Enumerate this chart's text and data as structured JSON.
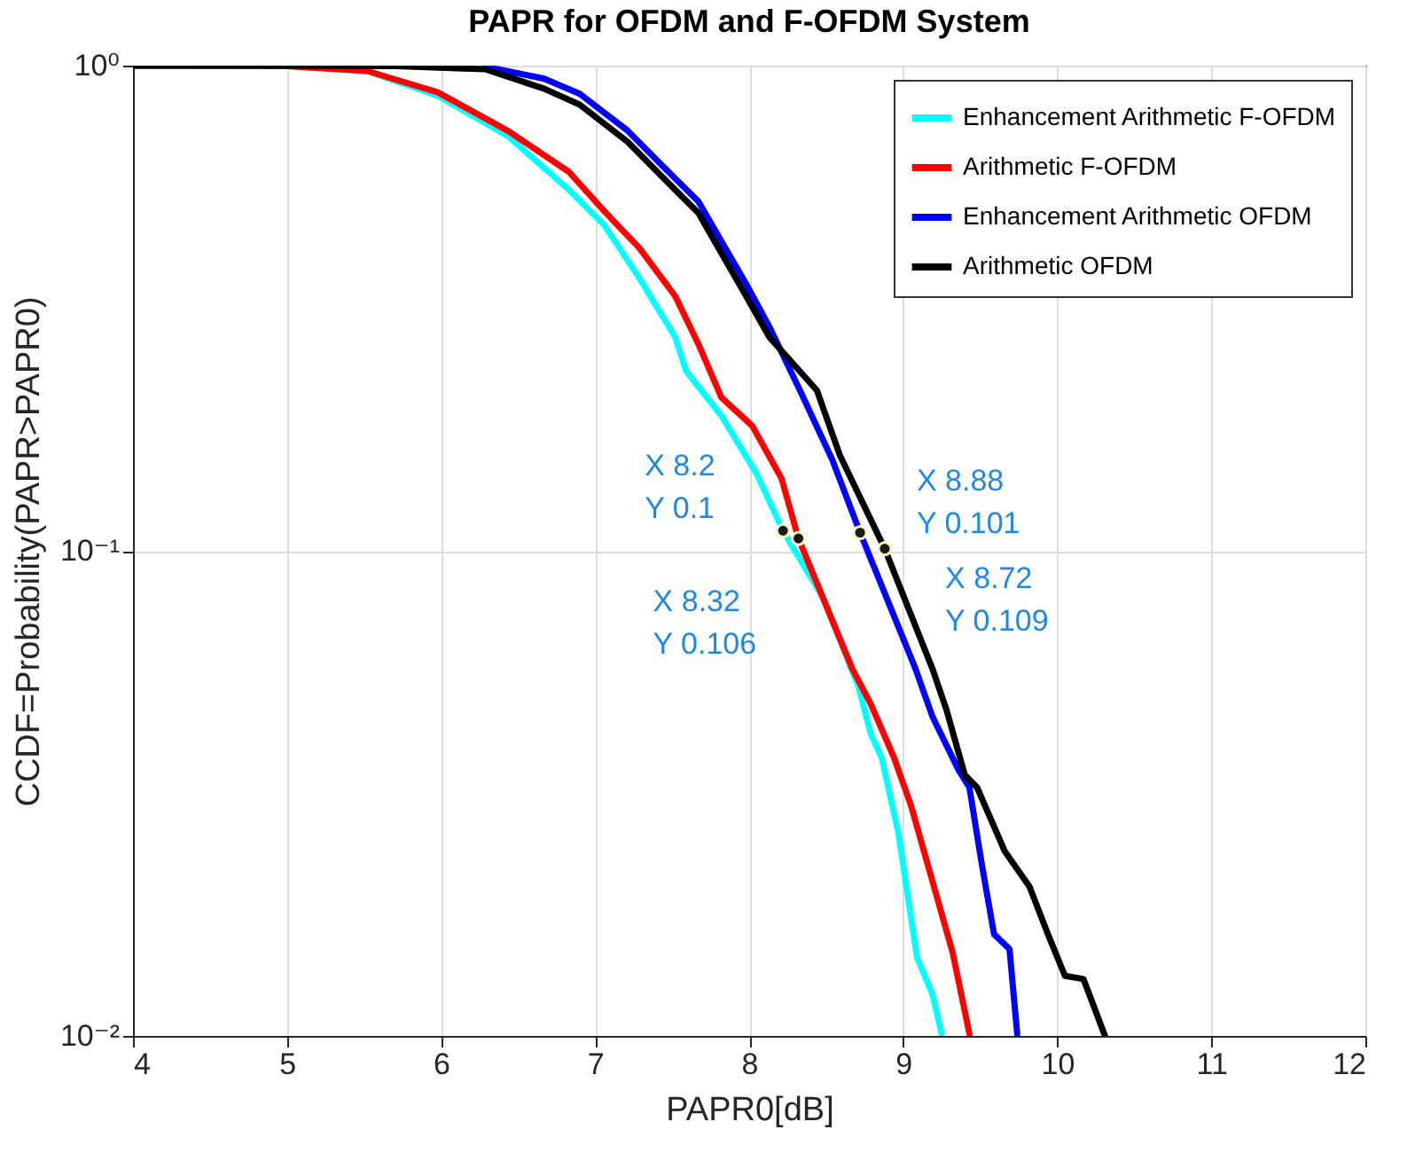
{
  "chart_data": {
    "type": "line",
    "title": "PAPR for OFDM and F-OFDM System",
    "xlabel": "PAPR0[dB]",
    "ylabel": "CCDF=Probability(PAPR>PAPR0)",
    "log": "y",
    "grid": true,
    "legend": "top right",
    "line_style": "solid",
    "xlim": [
      4,
      12
    ],
    "xticks": [
      4,
      5,
      6,
      7,
      8,
      9,
      10,
      11,
      12
    ],
    "ylim": [
      0.01,
      1
    ],
    "yticks": [
      {
        "value": 0.01,
        "label": "10⁻²"
      },
      {
        "value": 0.1,
        "label": "10⁻¹"
      },
      {
        "value": 1,
        "label": "10⁰"
      }
    ],
    "series": [
      {
        "name": "Enhancement Arithmetic F-OFDM",
        "color": "#00ffff",
        "x": [
          4,
          5,
          5.52,
          5.98,
          6.44,
          6.83,
          7.06,
          7.29,
          7.52,
          7.59,
          7.82,
          8.05,
          8.22,
          8.48,
          8.71,
          8.79,
          8.86,
          8.97,
          9.09,
          9.19,
          9.25
        ],
        "values": [
          1,
          0.998,
          0.975,
          0.867,
          0.714,
          0.555,
          0.469,
          0.364,
          0.276,
          0.235,
          0.19,
          0.144,
          0.11,
          0.08,
          0.0525,
          0.0419,
          0.0375,
          0.0261,
          0.0145,
          0.0122,
          0.0101
        ]
      },
      {
        "name": "Arithmetic F-OFDM",
        "color": "#ff0000",
        "x": [
          4,
          5,
          5.52,
          5.98,
          6.44,
          6.83,
          7.06,
          7.29,
          7.52,
          7.67,
          7.82,
          8.02,
          8.21,
          8.32,
          8.67,
          8.79,
          8.94,
          9.05,
          9.2,
          9.32,
          9.43
        ],
        "values": [
          1,
          0.998,
          0.975,
          0.881,
          0.732,
          0.604,
          0.501,
          0.42,
          0.335,
          0.267,
          0.207,
          0.181,
          0.141,
          0.106,
          0.0571,
          0.0483,
          0.0375,
          0.0299,
          0.0203,
          0.0149,
          0.0101
        ]
      },
      {
        "name": "Enhancement Arithmetic OFDM",
        "color": "#0000ff",
        "x": [
          6.29,
          6.67,
          6.9,
          7.21,
          7.44,
          7.67,
          7.98,
          8.13,
          8.33,
          8.54,
          8.72,
          9.08,
          9.19,
          9.36,
          9.43,
          9.51,
          9.59,
          9.69,
          9.74
        ],
        "values": [
          0.995,
          0.94,
          0.875,
          0.735,
          0.62,
          0.525,
          0.355,
          0.29,
          0.214,
          0.154,
          0.109,
          0.0571,
          0.0455,
          0.0353,
          0.0325,
          0.0226,
          0.0162,
          0.0151,
          0.0101
        ]
      },
      {
        "name": "Arithmetic OFDM",
        "color": "#000000",
        "x": [
          4,
          5,
          5.7,
          6.29,
          6.67,
          6.9,
          7.21,
          7.44,
          7.67,
          7.98,
          8.13,
          8.44,
          8.59,
          8.88,
          9.19,
          9.28,
          9.4,
          9.48,
          9.66,
          9.82,
          9.94,
          10.05,
          10.17,
          10.28,
          10.31
        ],
        "values": [
          1,
          1,
          0.998,
          0.983,
          0.896,
          0.831,
          0.697,
          0.588,
          0.497,
          0.335,
          0.276,
          0.214,
          0.157,
          0.101,
          0.0571,
          0.0471,
          0.0345,
          0.0325,
          0.024,
          0.0203,
          0.0162,
          0.0133,
          0.0131,
          0.0106,
          0.01
        ]
      }
    ],
    "annotations": [
      {
        "text": "X 8.32\nY 0.106",
        "x": 8.32,
        "y": 0.106
      },
      {
        "text": "X 8.2\nY 0.1",
        "x": 8.22,
        "y": 0.11
      },
      {
        "text": "X 8.72\nY 0.109",
        "x": 8.72,
        "y": 0.109
      },
      {
        "text": "X 8.88\nY 0.101",
        "x": 8.88,
        "y": 0.101
      }
    ]
  }
}
